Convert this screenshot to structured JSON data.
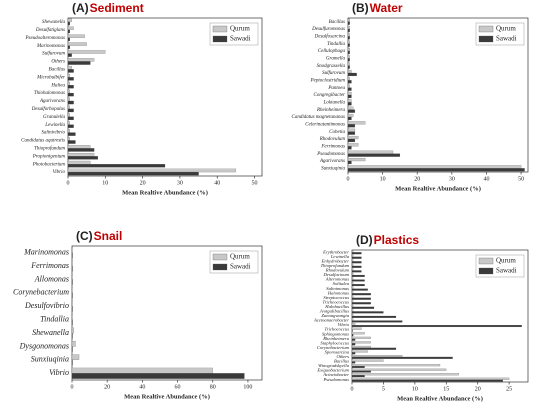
{
  "chart_data": [
    {
      "type": "bar",
      "orientation": "horizontal",
      "panel": "(A)",
      "title": "Sediment",
      "xlabel": "Mean Realtive Abundance (%)",
      "categories": [
        "Shewanella",
        "Desulfatiglans",
        "Pseudoalteromonas",
        "Marinomonas",
        "Sulfurovum",
        "Others",
        "Bacillus",
        "Microbulbifer",
        "Haliea",
        "Thiohalomonas",
        "Agarivorans",
        "Desulforhopalus",
        "Granulella",
        "Lewinella",
        "Salinivibrio",
        "Candidatus aquirestis",
        "Thioprofundum",
        "Propionigenium",
        "Photobacterium",
        "Vibrio"
      ],
      "series": [
        {
          "name": "Qurum",
          "color": "#c8c8c8",
          "values": [
            1,
            1.5,
            4.5,
            5,
            10,
            7,
            1,
            0.5,
            0.5,
            0.5,
            0.5,
            0.5,
            0.5,
            0.5,
            0.5,
            0.5,
            6,
            7,
            6,
            45
          ]
        },
        {
          "name": "Sawadi",
          "color": "#3a3a3a",
          "values": [
            0.5,
            0.5,
            0.5,
            0.5,
            1,
            6,
            1.5,
            1.5,
            1.5,
            1.5,
            1.5,
            1.5,
            1.5,
            1.5,
            2,
            2,
            7,
            8,
            26,
            35
          ]
        }
      ],
      "xlim": [
        0,
        52
      ],
      "xticks": [
        0,
        10,
        20,
        30,
        40,
        50
      ]
    },
    {
      "type": "bar",
      "orientation": "horizontal",
      "panel": "(B)",
      "title": "Water",
      "xlabel": "Mean Realtive Abundance (%)",
      "categories": [
        "Bacillus",
        "Desulfuromonas",
        "Desulfosarcina",
        "Tindallia",
        "Cellulophaga",
        "Gramella",
        "Snodgrassella",
        "Sulfurovum",
        "Peptoclostridium",
        "Pantoea",
        "Congregibacter",
        "Loktanella",
        "Rheinheimera",
        "Candidatus magnetananas",
        "Celerinatantimonas",
        "Cobetia",
        "Rhodovulum",
        "Ferrimonas",
        "Pseudomonas",
        "Agarivorans",
        "Sunxiuqinia"
      ],
      "series": [
        {
          "name": "Qurum",
          "color": "#c8c8c8",
          "values": [
            0.5,
            0.5,
            0.5,
            0.5,
            0.5,
            0.5,
            0.5,
            1,
            0.5,
            0.5,
            1,
            1,
            1.5,
            1.5,
            5,
            2,
            3,
            3,
            13,
            5,
            50
          ]
        },
        {
          "name": "Sawadi",
          "color": "#3a3a3a",
          "values": [
            0.5,
            0.5,
            0.5,
            0.5,
            0.5,
            0.5,
            0.5,
            2.5,
            1,
            1,
            1,
            1,
            2,
            1,
            2,
            2,
            2,
            1,
            15,
            1,
            51
          ]
        }
      ],
      "xlim": [
        0,
        52
      ],
      "xticks": [
        0,
        10,
        20,
        30,
        40,
        50
      ]
    },
    {
      "type": "bar",
      "orientation": "horizontal",
      "panel": "(C)",
      "title": "Snail",
      "xlabel": "Mean Realtive Abundance (%)",
      "categories": [
        "Marinomonas",
        "Ferrimonas",
        "Allomonas",
        "Corynebacterium",
        "Desulfovibrio",
        "Tindallia",
        "Shewanella",
        "Dysgonomonas",
        "Sunxiuqinia",
        "Vibrio"
      ],
      "series": [
        {
          "name": "Qurum",
          "color": "#c8c8c8",
          "values": [
            0.3,
            0.3,
            0.3,
            0.3,
            0.3,
            0.3,
            1,
            2,
            4,
            80
          ]
        },
        {
          "name": "Sawadi",
          "color": "#3a3a3a",
          "values": [
            0.3,
            0.3,
            0.3,
            0.3,
            0.3,
            0.3,
            0.3,
            0.3,
            0.3,
            98
          ]
        }
      ],
      "xlim": [
        0,
        108
      ],
      "xticks": [
        0,
        20,
        40,
        60,
        80,
        100
      ]
    },
    {
      "type": "bar",
      "orientation": "horizontal",
      "panel": "(D)",
      "title": "Plastics",
      "xlabel": "Mean Realtive Abundance (%)",
      "categories": [
        "Erythrobacter",
        "Lewinella",
        "Enhydrobacter",
        "Thioprofundum",
        "Rhodovulum",
        "Desulfacinum",
        "Alteromonas",
        "Solitalea",
        "Salinimonas",
        "Halomonas",
        "Streptococcus",
        "Tricheococcus",
        "Halobacillus",
        "Jeotgalibacillus",
        "Zunongwangia",
        "Acetoanaerobacter",
        "Vibrio",
        "Trichococcus",
        "Sphingomonas",
        "Rheinheimera",
        "Staphylococcus",
        "Corynebacterium",
        "Sporosarcina",
        "Others",
        "Bacillus",
        "Winogradskyella",
        "Exiguobacterium",
        "Acinetobacter",
        "Pseudomonas"
      ],
      "series": [
        {
          "name": "Qurum",
          "color": "#c8c8c8",
          "values": [
            0.2,
            0.2,
            0.2,
            0.2,
            0.2,
            0.2,
            0.2,
            0.2,
            0.2,
            0.2,
            0.2,
            0.2,
            0.2,
            0.2,
            0.2,
            0.2,
            0.5,
            1.5,
            2,
            3,
            3,
            3,
            2.5,
            8,
            5,
            14,
            15,
            17,
            25
          ]
        },
        {
          "name": "Sawadi",
          "color": "#3a3a3a",
          "values": [
            1.5,
            1.5,
            1.5,
            1.5,
            1.5,
            2,
            2,
            2,
            2.5,
            3,
            3,
            3,
            3.5,
            5,
            7,
            8,
            27,
            0.1,
            0.2,
            0.5,
            0.5,
            7,
            0.5,
            16,
            0.5,
            2,
            3,
            2,
            24
          ]
        }
      ],
      "xlim": [
        0,
        28
      ],
      "xticks": [
        0,
        5,
        10,
        15,
        20,
        25
      ]
    }
  ]
}
